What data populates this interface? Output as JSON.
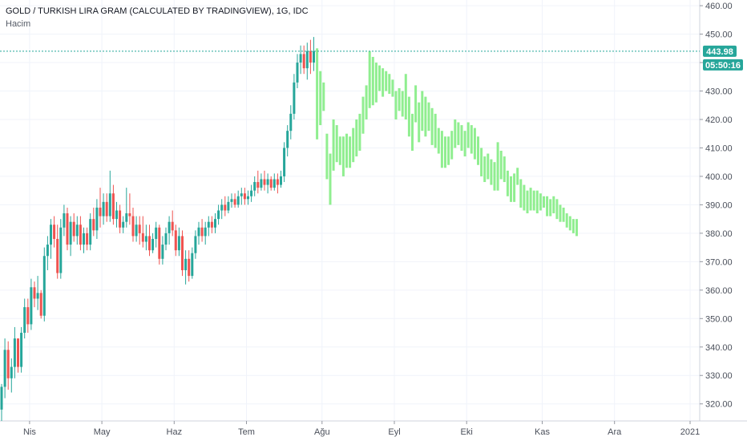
{
  "header": {
    "title": "GOLD / TURKISH LIRA GRAM (CALCULATED BY TRADINGVIEW), 1G, IDC",
    "subtitle": "Hacim"
  },
  "price_badge": {
    "price": "443.98",
    "countdown": "05:50:16",
    "color": "#26a69a"
  },
  "colors": {
    "up": "#26a69a",
    "down": "#ef5350",
    "projection": "#90ee90",
    "grid": "#f0f3fa",
    "price_line": "#26a69a"
  },
  "chart_data": {
    "type": "candlestick",
    "title": "GOLD / TURKISH LIRA GRAM (CALCULATED BY TRADINGVIEW), 1G, IDC",
    "y_ticks": [
      "320.00",
      "330.00",
      "340.00",
      "350.00",
      "360.00",
      "370.00",
      "380.00",
      "390.00",
      "400.00",
      "410.00",
      "420.00",
      "430.00",
      "440.00",
      "450.00",
      "460.00"
    ],
    "ylim": [
      314,
      462
    ],
    "x_ticks": [
      {
        "label": "Nis",
        "index": 9
      },
      {
        "label": "May",
        "index": 31
      },
      {
        "label": "Haz",
        "index": 53
      },
      {
        "label": "Tem",
        "index": 75
      },
      {
        "label": "Ağu",
        "index": 98
      },
      {
        "label": "Eyl",
        "index": 120
      },
      {
        "label": "Eki",
        "index": 142
      },
      {
        "label": "Kas",
        "index": 165
      },
      {
        "label": "Ara",
        "index": 187
      },
      {
        "label": "2021",
        "index": 210
      }
    ],
    "last_price": 443.98,
    "candles": [
      [
        318,
        327,
        314,
        326
      ],
      [
        326,
        343,
        322,
        339
      ],
      [
        339,
        342,
        325,
        329
      ],
      [
        329,
        336,
        324,
        333
      ],
      [
        333,
        347,
        329,
        343
      ],
      [
        343,
        343,
        331,
        333
      ],
      [
        333,
        347,
        331,
        345
      ],
      [
        345,
        357,
        343,
        354
      ],
      [
        354,
        357,
        345,
        348
      ],
      [
        348,
        364,
        346,
        361
      ],
      [
        361,
        363,
        354,
        357
      ],
      [
        357,
        365,
        353,
        359
      ],
      [
        359,
        360,
        350,
        351
      ],
      [
        351,
        375,
        349,
        372
      ],
      [
        372,
        379,
        367,
        376
      ],
      [
        376,
        385,
        371,
        383
      ],
      [
        383,
        386,
        375,
        378
      ],
      [
        378,
        383,
        364,
        366
      ],
      [
        366,
        385,
        364,
        382
      ],
      [
        382,
        390,
        379,
        387
      ],
      [
        387,
        389,
        374,
        376
      ],
      [
        376,
        386,
        372,
        384
      ],
      [
        384,
        387,
        377,
        379
      ],
      [
        379,
        386,
        376,
        383
      ],
      [
        383,
        386,
        374,
        376
      ],
      [
        376,
        382,
        373,
        380
      ],
      [
        380,
        382,
        374,
        376
      ],
      [
        376,
        387,
        374,
        385
      ],
      [
        385,
        389,
        379,
        381
      ],
      [
        381,
        392,
        378,
        389
      ],
      [
        389,
        396,
        382,
        386
      ],
      [
        386,
        394,
        383,
        391
      ],
      [
        391,
        394,
        384,
        386
      ],
      [
        386,
        402,
        384,
        394
      ],
      [
        394,
        397,
        383,
        385
      ],
      [
        385,
        391,
        382,
        388
      ],
      [
        388,
        390,
        380,
        382
      ],
      [
        382,
        386,
        380,
        384
      ],
      [
        384,
        396,
        382,
        387
      ],
      [
        387,
        394,
        383,
        386
      ],
      [
        386,
        389,
        377,
        379
      ],
      [
        379,
        386,
        377,
        383
      ],
      [
        383,
        386,
        376,
        380
      ],
      [
        380,
        386,
        375,
        377
      ],
      [
        377,
        383,
        374,
        379
      ],
      [
        379,
        383,
        372,
        374
      ],
      [
        374,
        380,
        373,
        378
      ],
      [
        378,
        384,
        375,
        382
      ],
      [
        382,
        383,
        369,
        371
      ],
      [
        371,
        379,
        369,
        376
      ],
      [
        376,
        382,
        374,
        380
      ],
      [
        380,
        386,
        376,
        384
      ],
      [
        384,
        388,
        379,
        381
      ],
      [
        381,
        383,
        372,
        374
      ],
      [
        374,
        382,
        372,
        379
      ],
      [
        379,
        381,
        365,
        367
      ],
      [
        367,
        374,
        362,
        371
      ],
      [
        371,
        374,
        363,
        365
      ],
      [
        365,
        375,
        364,
        373
      ],
      [
        373,
        381,
        371,
        379
      ],
      [
        379,
        384,
        376,
        382
      ],
      [
        382,
        385,
        377,
        379
      ],
      [
        379,
        384,
        376,
        382
      ],
      [
        382,
        386,
        379,
        384
      ],
      [
        384,
        386,
        380,
        382
      ],
      [
        382,
        387,
        380,
        385
      ],
      [
        385,
        390,
        383,
        388
      ],
      [
        388,
        392,
        385,
        390
      ],
      [
        390,
        393,
        386,
        388
      ],
      [
        388,
        393,
        387,
        391
      ],
      [
        391,
        394,
        389,
        392
      ],
      [
        392,
        394,
        389,
        390
      ],
      [
        390,
        395,
        389,
        393
      ],
      [
        393,
        396,
        390,
        394
      ],
      [
        394,
        396,
        390,
        392
      ],
      [
        392,
        395,
        390,
        393
      ],
      [
        393,
        397,
        391,
        395
      ],
      [
        395,
        400,
        393,
        398
      ],
      [
        398,
        402,
        394,
        396
      ],
      [
        396,
        401,
        395,
        399
      ],
      [
        399,
        402,
        395,
        397
      ],
      [
        397,
        401,
        394,
        399
      ],
      [
        399,
        400,
        395,
        396
      ],
      [
        396,
        401,
        395,
        399
      ],
      [
        399,
        401,
        394,
        397
      ],
      [
        397,
        402,
        396,
        400
      ],
      [
        400,
        412,
        398,
        410
      ],
      [
        410,
        418,
        407,
        416
      ],
      [
        416,
        425,
        413,
        422
      ],
      [
        422,
        436,
        420,
        433
      ],
      [
        433,
        443,
        431,
        440
      ],
      [
        440,
        446,
        436,
        443
      ],
      [
        443,
        446,
        436,
        438
      ],
      [
        438,
        447,
        434,
        444
      ],
      [
        444,
        448,
        436,
        440
      ],
      [
        440,
        449,
        437,
        444
      ]
    ],
    "projection": [
      [
        413,
        445
      ],
      [
        418,
        437
      ],
      [
        423,
        433
      ],
      [
        399,
        415
      ],
      [
        390,
        408
      ],
      [
        402,
        420
      ],
      [
        405,
        418
      ],
      [
        404,
        414
      ],
      [
        400,
        414
      ],
      [
        403,
        415
      ],
      [
        403,
        414
      ],
      [
        405,
        417
      ],
      [
        407,
        420
      ],
      [
        409,
        422
      ],
      [
        415,
        428
      ],
      [
        420,
        432
      ],
      [
        424,
        444
      ],
      [
        425,
        442
      ],
      [
        426,
        440
      ],
      [
        430,
        439
      ],
      [
        428,
        438
      ],
      [
        430,
        437
      ],
      [
        429,
        436
      ],
      [
        428,
        434
      ],
      [
        420,
        430
      ],
      [
        423,
        431
      ],
      [
        421,
        430
      ],
      [
        420,
        436
      ],
      [
        414,
        428
      ],
      [
        409,
        422
      ],
      [
        419,
        432
      ],
      [
        412,
        426
      ],
      [
        416,
        430
      ],
      [
        414,
        428
      ],
      [
        416,
        426
      ],
      [
        411,
        424
      ],
      [
        410,
        422
      ],
      [
        408,
        417
      ],
      [
        403,
        416
      ],
      [
        403,
        414
      ],
      [
        404,
        414
      ],
      [
        406,
        416
      ],
      [
        410,
        420
      ],
      [
        411,
        419
      ],
      [
        409,
        418
      ],
      [
        407,
        416
      ],
      [
        410,
        419
      ],
      [
        408,
        418
      ],
      [
        406,
        417
      ],
      [
        404,
        414
      ],
      [
        400,
        410
      ],
      [
        398,
        407
      ],
      [
        399,
        408
      ],
      [
        397,
        406
      ],
      [
        395,
        405
      ],
      [
        395,
        412
      ],
      [
        399,
        409
      ],
      [
        398,
        407
      ],
      [
        393,
        402
      ],
      [
        391,
        400
      ],
      [
        391,
        401
      ],
      [
        397,
        403
      ],
      [
        389,
        399
      ],
      [
        388,
        397
      ],
      [
        387,
        395
      ],
      [
        388,
        396
      ],
      [
        388,
        395
      ],
      [
        387,
        395
      ],
      [
        388,
        394
      ],
      [
        389,
        393
      ],
      [
        386,
        393
      ],
      [
        386,
        392
      ],
      [
        387,
        393
      ],
      [
        385,
        392
      ],
      [
        384,
        390
      ],
      [
        384,
        389
      ],
      [
        382,
        387
      ],
      [
        381,
        386
      ],
      [
        380,
        385
      ],
      [
        379,
        385
      ]
    ]
  }
}
